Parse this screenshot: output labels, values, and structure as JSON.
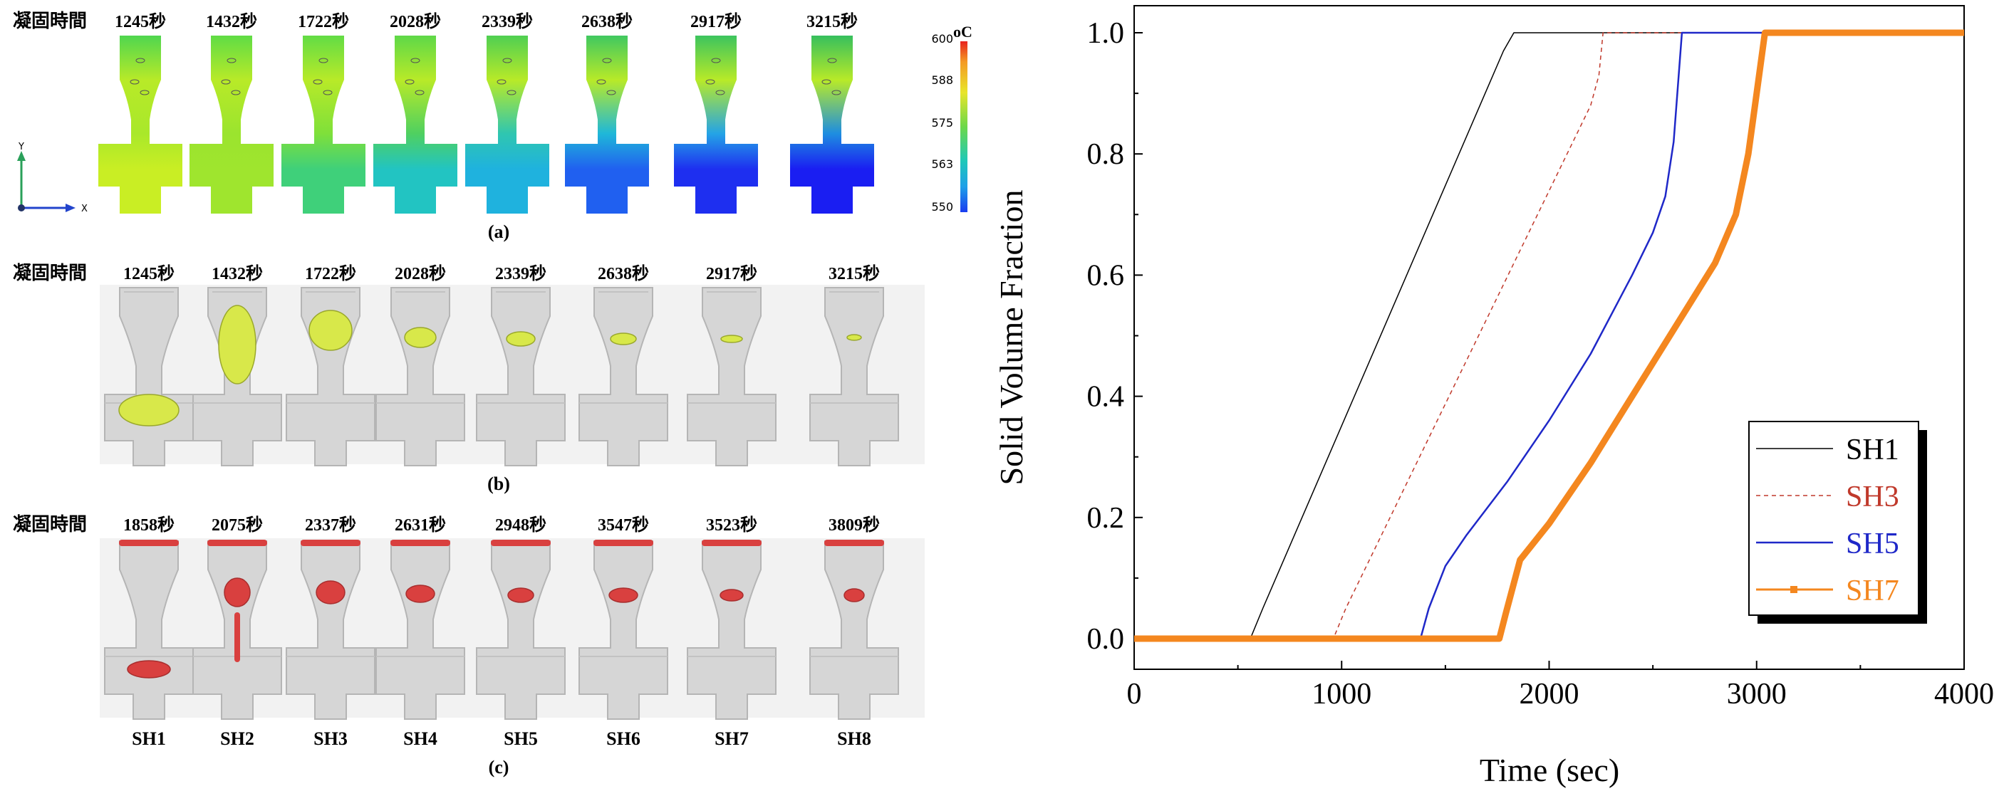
{
  "figure_a": {
    "row_label": "凝固時間",
    "times": [
      "1245秒",
      "1432秒",
      "1722秒",
      "2028秒",
      "2339秒",
      "2638秒",
      "2917秒",
      "3215秒"
    ],
    "caption": "(a)",
    "colorbar": {
      "unit": "oC",
      "ticks": [
        "600",
        "588",
        "575",
        "563",
        "550"
      ],
      "top_color": "#e8231f",
      "bottom_color": "#1a3cf0"
    },
    "axis_y": "Y",
    "axis_x": "X",
    "casting_top_colors": [
      "#4fd64f",
      "#5fdc45",
      "#62dc45",
      "#5ed848",
      "#4fcf52",
      "#40c860",
      "#3cc45e",
      "#36bf5d"
    ],
    "casting_neck_colors": [
      "#a9e82a",
      "#9be42e",
      "#7fe03a",
      "#4fd060",
      "#2fc6b0",
      "#1fb8d8",
      "#24a4e6",
      "#1e8ee0"
    ],
    "casting_bottom_colors": [
      "#c9ee24",
      "#9fe52e",
      "#3fd07a",
      "#22c4c2",
      "#1fb2de",
      "#2060f0",
      "#1e2ff0",
      "#1a1ef2"
    ]
  },
  "figure_b": {
    "row_label": "凝固時間",
    "times": [
      "1245秒",
      "1432秒",
      "1722秒",
      "2028秒",
      "2339秒",
      "2638秒",
      "2917秒",
      "3215秒"
    ],
    "caption": "(b)",
    "liquid_color": "#d8e84a"
  },
  "figure_c": {
    "row_label": "凝固時間",
    "times": [
      "1858秒",
      "2075秒",
      "2337秒",
      "2631秒",
      "2948秒",
      "3547秒",
      "3523秒",
      "3809秒"
    ],
    "labels": [
      "SH1",
      "SH2",
      "SH3",
      "SH4",
      "SH5",
      "SH6",
      "SH7",
      "SH8"
    ],
    "caption": "(c)",
    "defect_color": "#d9403f"
  },
  "chart_data": {
    "type": "line",
    "title": "",
    "xlabel": "Time (sec)",
    "ylabel": "Solid Volume Fraction",
    "xlim": [
      0,
      4000
    ],
    "ylim": [
      0,
      1.0
    ],
    "xticks": [
      "0",
      "1000",
      "2000",
      "3000",
      "4000"
    ],
    "yticks": [
      "0.0",
      "0.2",
      "0.4",
      "0.6",
      "0.8",
      "1.0"
    ],
    "legend_position": "bottom-right",
    "series": [
      {
        "name": "SH1",
        "color": "#000000",
        "style": "solid",
        "width": 1.5,
        "x": [
          0,
          560,
          620,
          1780,
          1830,
          4000
        ],
        "y": [
          0,
          0,
          0.05,
          0.97,
          1.0,
          1.0
        ]
      },
      {
        "name": "SH3",
        "color": "#c0392b",
        "style": "dashed",
        "width": 1.5,
        "x": [
          0,
          960,
          1020,
          2200,
          2240,
          2260,
          4000
        ],
        "y": [
          0,
          0,
          0.05,
          0.88,
          0.93,
          1.0,
          1.0
        ]
      },
      {
        "name": "SH5",
        "color": "#1f28c8",
        "style": "solid",
        "width": 2.5,
        "x": [
          0,
          1380,
          1420,
          1500,
          1600,
          1800,
          2000,
          2200,
          2400,
          2500,
          2560,
          2600,
          2640,
          4000
        ],
        "y": [
          0,
          0,
          0.05,
          0.12,
          0.17,
          0.26,
          0.36,
          0.47,
          0.6,
          0.67,
          0.73,
          0.82,
          1.0,
          1.0
        ]
      },
      {
        "name": "SH7",
        "color": "#f4871f",
        "style": "solid",
        "width": 9,
        "x": [
          0,
          1760,
          1790,
          1860,
          2000,
          2200,
          2400,
          2600,
          2800,
          2900,
          2960,
          3000,
          3040,
          4000
        ],
        "y": [
          0,
          0,
          0.04,
          0.13,
          0.19,
          0.29,
          0.4,
          0.51,
          0.62,
          0.7,
          0.8,
          0.9,
          1.0,
          1.0
        ]
      }
    ]
  }
}
